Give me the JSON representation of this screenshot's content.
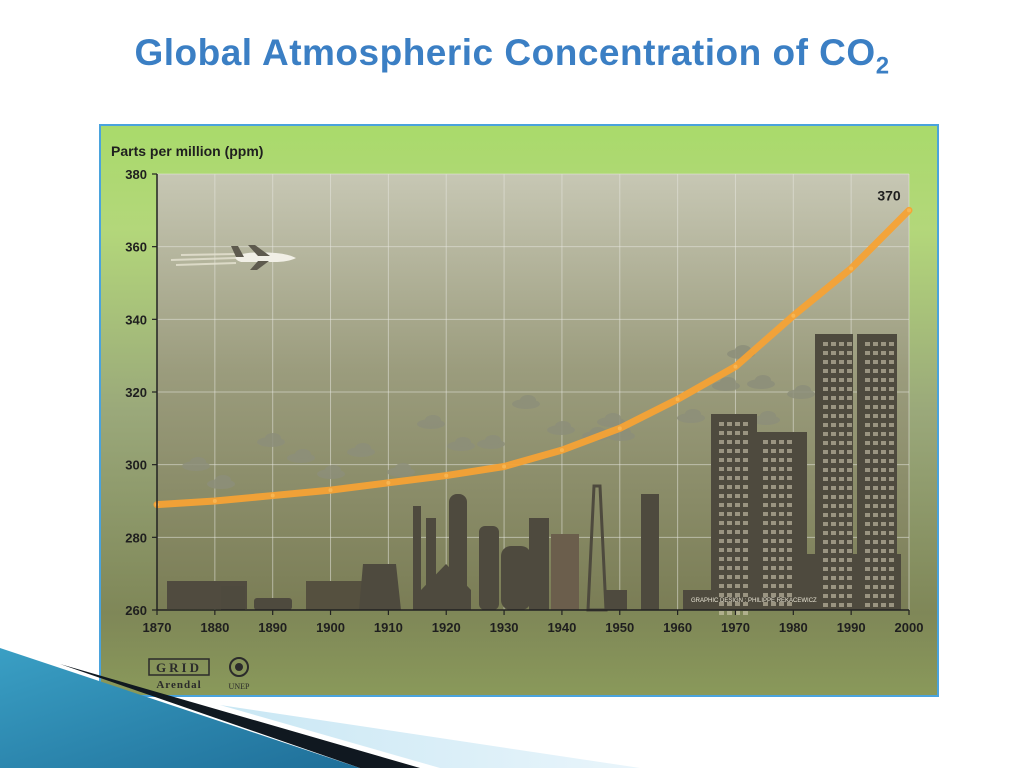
{
  "slide": {
    "title_main": "Global Atmospheric Concentration of CO",
    "title_sub": "2"
  },
  "colors": {
    "title": "#3b7fc4",
    "frame_border": "#4aa3dd",
    "background_top": "#a7d86a",
    "background_bottom": "#7f8758",
    "line": "#f5a235",
    "industry": "#4e4a3e"
  },
  "chart_data": {
    "type": "line",
    "title": "",
    "xlabel": "",
    "ylabel": "Parts per million (ppm)",
    "x": [
      1870,
      1880,
      1890,
      1900,
      1910,
      1920,
      1930,
      1940,
      1950,
      1960,
      1970,
      1980,
      1990,
      2000
    ],
    "xlim": [
      1870,
      2000
    ],
    "ylim": [
      260,
      380
    ],
    "x_ticks": [
      "1870",
      "1880",
      "1890",
      "1900",
      "1910",
      "1920",
      "1930",
      "1940",
      "1950",
      "1960",
      "1970",
      "1980",
      "1990",
      "2000"
    ],
    "y_ticks": [
      "260",
      "280",
      "300",
      "320",
      "340",
      "360",
      "380"
    ],
    "grid": true,
    "series": [
      {
        "values": [
          289,
          290,
          291.5,
          293,
          295,
          297,
          299.5,
          304,
          310,
          318,
          327,
          341,
          354,
          370
        ]
      }
    ],
    "annotations": [
      {
        "x": 2000,
        "y": 370,
        "text": "370"
      }
    ],
    "credit": "GRAPHIC DESIGN : PHILIPPE REKACEWICZ"
  },
  "logos": {
    "grid_text": "GRID",
    "arendal_text": "Arendal",
    "unep_text": "UNEP"
  }
}
